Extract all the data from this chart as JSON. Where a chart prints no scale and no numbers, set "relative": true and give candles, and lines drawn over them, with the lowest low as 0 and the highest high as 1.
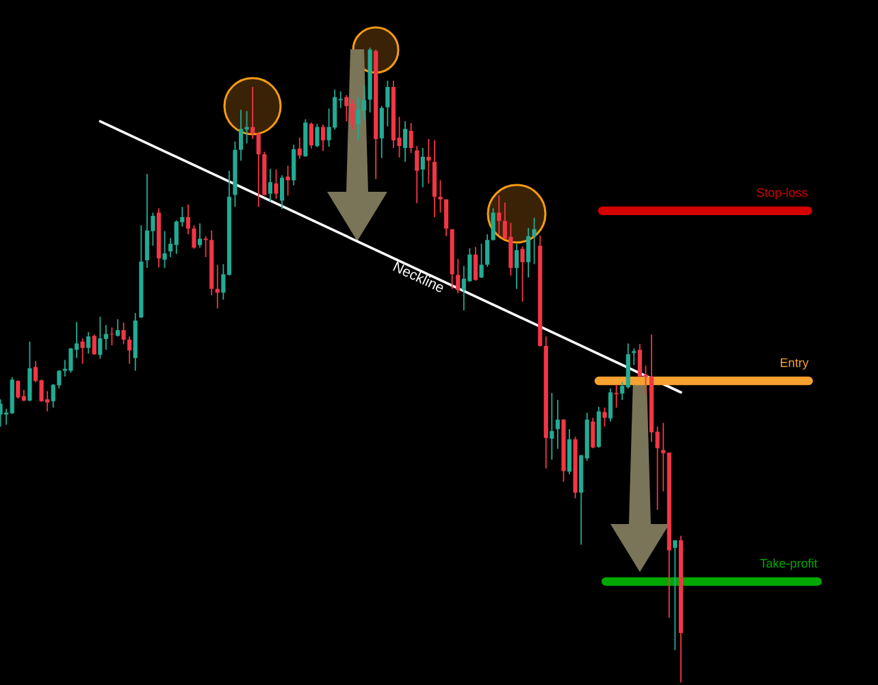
{
  "chart_data": {
    "type": "candlestick",
    "relative": true,
    "categories": [
      null,
      null,
      null,
      null,
      null,
      null,
      null,
      null,
      null,
      null,
      null,
      null,
      null,
      null,
      null,
      null,
      null,
      null,
      null,
      null,
      null,
      null,
      null,
      null,
      null,
      null,
      null,
      null,
      null,
      null,
      null,
      null,
      null,
      null,
      null,
      null,
      null,
      null,
      null,
      null,
      null,
      null,
      null,
      null,
      null,
      null,
      null,
      null,
      null,
      null,
      null,
      null,
      null,
      null,
      null,
      null,
      null,
      null,
      null,
      null,
      null,
      null,
      null,
      null,
      null,
      null,
      null,
      null,
      null,
      null,
      null,
      null,
      null,
      null,
      null,
      null,
      null,
      null,
      null,
      null,
      null,
      null,
      null,
      null,
      null,
      null,
      null,
      null,
      null,
      null,
      null,
      null,
      null,
      null,
      null,
      null,
      null,
      null,
      null,
      null,
      null,
      null,
      null,
      null,
      null,
      null,
      null,
      null,
      null,
      null,
      null,
      null,
      null,
      null,
      null,
      null,
      null
    ],
    "ohlc": [
      [
        0.422,
        0.446,
        0.403,
        0.439
      ],
      [
        0.422,
        0.431,
        0.406,
        0.425
      ],
      [
        0.424,
        0.481,
        0.423,
        0.477
      ],
      [
        0.475,
        0.476,
        0.447,
        0.449
      ],
      [
        0.451,
        0.461,
        0.443,
        0.444
      ],
      [
        0.444,
        0.537,
        0.443,
        0.495
      ],
      [
        0.497,
        0.506,
        0.473,
        0.475
      ],
      [
        0.476,
        0.477,
        0.442,
        0.443
      ],
      [
        0.446,
        0.459,
        0.427,
        0.441
      ],
      [
        0.443,
        0.47,
        0.433,
        0.469
      ],
      [
        0.468,
        0.492,
        0.463,
        0.491
      ],
      [
        0.491,
        0.508,
        0.482,
        0.494
      ],
      [
        0.491,
        0.527,
        0.488,
        0.526
      ],
      [
        0.524,
        0.568,
        0.511,
        0.534
      ],
      [
        0.537,
        0.542,
        0.502,
        0.527
      ],
      [
        0.527,
        0.552,
        0.518,
        0.545
      ],
      [
        0.546,
        0.548,
        0.516,
        0.517
      ],
      [
        0.516,
        0.576,
        0.51,
        0.542
      ],
      [
        0.541,
        0.563,
        0.524,
        0.549
      ],
      [
        0.549,
        0.559,
        0.531,
        0.548
      ],
      [
        0.546,
        0.572,
        0.545,
        0.555
      ],
      [
        0.555,
        0.567,
        0.533,
        0.54
      ],
      [
        0.54,
        0.545,
        0.502,
        0.523
      ],
      [
        0.511,
        0.582,
        0.491,
        0.57
      ],
      [
        0.575,
        0.72,
        0.574,
        0.663
      ],
      [
        0.665,
        0.801,
        0.653,
        0.712
      ],
      [
        0.711,
        0.74,
        0.688,
        0.735
      ],
      [
        0.74,
        0.747,
        0.654,
        0.668
      ],
      [
        0.666,
        0.711,
        0.653,
        0.676
      ],
      [
        0.679,
        0.7,
        0.67,
        0.691
      ],
      [
        0.689,
        0.728,
        0.675,
        0.726
      ],
      [
        0.725,
        0.749,
        0.718,
        0.733
      ],
      [
        0.733,
        0.753,
        0.706,
        0.715
      ],
      [
        0.715,
        0.72,
        0.683,
        0.685
      ],
      [
        0.689,
        0.723,
        0.685,
        0.699
      ],
      [
        0.699,
        0.703,
        0.67,
        0.697
      ],
      [
        0.697,
        0.712,
        0.61,
        0.62
      ],
      [
        0.62,
        0.658,
        0.589,
        0.614
      ],
      [
        0.614,
        0.659,
        0.603,
        0.643
      ],
      [
        0.642,
        0.806,
        0.641,
        0.765
      ],
      [
        0.768,
        0.852,
        0.749,
        0.839
      ],
      [
        0.839,
        0.902,
        0.822,
        0.872
      ],
      [
        0.871,
        0.9,
        0.849,
        0.875
      ],
      [
        0.875,
        0.938,
        0.856,
        0.865
      ],
      [
        0.865,
        0.865,
        0.749,
        0.832
      ],
      [
        0.832,
        0.836,
        0.767,
        0.768
      ],
      [
        0.77,
        0.809,
        0.758,
        0.788
      ],
      [
        0.786,
        0.808,
        0.762,
        0.77
      ],
      [
        0.759,
        0.799,
        0.746,
        0.795
      ],
      [
        0.797,
        0.814,
        0.767,
        0.791
      ],
      [
        0.791,
        0.847,
        0.783,
        0.84
      ],
      [
        0.841,
        0.858,
        0.825,
        0.83
      ],
      [
        0.829,
        0.887,
        0.828,
        0.882
      ],
      [
        0.88,
        0.882,
        0.841,
        0.846
      ],
      [
        0.845,
        0.88,
        0.843,
        0.875
      ],
      [
        0.875,
        0.879,
        0.837,
        0.854
      ],
      [
        0.854,
        0.904,
        0.844,
        0.875
      ],
      [
        0.874,
        0.934,
        0.871,
        0.922
      ],
      [
        0.917,
        0.931,
        0.905,
        0.919
      ],
      [
        0.922,
        0.925,
        0.884,
        0.908
      ],
      [
        0.911,
        0.918,
        0.871,
        0.879
      ],
      [
        0.879,
        0.922,
        0.855,
        0.902
      ],
      [
        0.901,
        0.941,
        0.887,
        0.917
      ],
      [
        0.918,
        1.0,
        0.898,
        0.997
      ],
      [
        0.995,
        0.997,
        0.793,
        0.856
      ],
      [
        0.857,
        0.908,
        0.826,
        0.905
      ],
      [
        0.906,
        0.948,
        0.876,
        0.938
      ],
      [
        0.938,
        0.948,
        0.842,
        0.854
      ],
      [
        0.858,
        0.891,
        0.827,
        0.845
      ],
      [
        0.842,
        0.884,
        0.82,
        0.872
      ],
      [
        0.869,
        0.881,
        0.834,
        0.842
      ],
      [
        0.838,
        0.845,
        0.755,
        0.806
      ],
      [
        0.808,
        0.842,
        0.78,
        0.828
      ],
      [
        0.828,
        0.856,
        0.786,
        0.822
      ],
      [
        0.82,
        0.854,
        0.733,
        0.765
      ],
      [
        0.765,
        0.791,
        0.74,
        0.761
      ],
      [
        0.761,
        0.761,
        0.703,
        0.715
      ],
      [
        0.714,
        0.714,
        0.62,
        0.643
      ],
      [
        0.642,
        0.667,
        0.613,
        0.618
      ],
      [
        0.618,
        0.656,
        0.586,
        0.636
      ],
      [
        0.632,
        0.684,
        0.631,
        0.674
      ],
      [
        0.674,
        0.686,
        0.633,
        0.634
      ],
      [
        0.638,
        0.691,
        0.637,
        0.658
      ],
      [
        0.658,
        0.706,
        0.655,
        0.697
      ],
      [
        0.697,
        0.747,
        0.696,
        0.74
      ],
      [
        0.74,
        0.767,
        0.706,
        0.727
      ],
      [
        0.727,
        0.756,
        0.698,
        0.699
      ],
      [
        0.702,
        0.724,
        0.641,
        0.653
      ],
      [
        0.653,
        0.691,
        0.62,
        0.681
      ],
      [
        0.683,
        0.687,
        0.6,
        0.662
      ],
      [
        0.662,
        0.716,
        0.638,
        0.703
      ],
      [
        0.703,
        0.732,
        0.659,
        0.714
      ],
      [
        0.688,
        0.704,
        0.529,
        0.53
      ],
      [
        0.53,
        0.545,
        0.337,
        0.385
      ],
      [
        0.384,
        0.456,
        0.351,
        0.396
      ],
      [
        0.399,
        0.445,
        0.368,
        0.414
      ],
      [
        0.414,
        0.415,
        0.316,
        0.333
      ],
      [
        0.332,
        0.399,
        0.328,
        0.383
      ],
      [
        0.383,
        0.387,
        0.29,
        0.299
      ],
      [
        0.299,
        0.358,
        0.217,
        0.358
      ],
      [
        0.353,
        0.425,
        0.349,
        0.414
      ],
      [
        0.411,
        0.417,
        0.369,
        0.37
      ],
      [
        0.371,
        0.434,
        0.37,
        0.427
      ],
      [
        0.426,
        0.433,
        0.403,
        0.417
      ],
      [
        0.416,
        0.463,
        0.411,
        0.457
      ],
      [
        0.456,
        0.469,
        0.433,
        0.454
      ],
      [
        0.455,
        0.473,
        0.445,
        0.467
      ],
      [
        0.465,
        0.534,
        0.463,
        0.517
      ],
      [
        0.519,
        0.526,
        0.5,
        0.522
      ],
      [
        0.524,
        0.533,
        0.481,
        0.482
      ],
      [
        0.485,
        0.499,
        0.454,
        0.481
      ],
      [
        0.482,
        0.548,
        0.379,
        0.394
      ],
      [
        0.395,
        0.403,
        0.272,
        0.369
      ],
      [
        0.366,
        0.409,
        0.301,
        0.361
      ],
      [
        0.362,
        0.362,
        0.102,
        0.208
      ],
      [
        0.212,
        0.224,
        0.051,
        0.224
      ],
      [
        0.224,
        0.231,
        0.0,
        0.078
      ]
    ],
    "series": [
      {
        "name": "Neckline",
        "type": "line",
        "color": "#ffffff",
        "values": [
          null,
          null,
          null,
          null,
          null,
          null,
          null,
          null,
          null,
          null,
          null,
          null,
          null,
          null,
          null,
          null,
          null,
          0.884,
          null,
          null,
          null,
          null,
          null,
          null,
          null,
          null,
          null,
          null,
          null,
          null,
          null,
          null,
          null,
          null,
          null,
          null,
          null,
          null,
          null,
          null,
          null,
          null,
          null,
          null,
          null,
          null,
          null,
          null,
          null,
          null,
          null,
          null,
          null,
          null,
          null,
          null,
          null,
          null,
          null,
          null,
          null,
          null,
          null,
          null,
          null,
          null,
          null,
          null,
          null,
          null,
          null,
          null,
          null,
          null,
          null,
          null,
          null,
          null,
          null,
          null,
          null,
          null,
          null,
          null,
          null,
          null,
          null,
          null,
          null,
          null,
          null,
          null,
          null,
          null,
          null,
          null,
          null,
          null,
          null,
          null,
          null,
          null,
          null,
          null,
          null,
          null,
          null,
          null,
          null,
          null,
          null,
          null,
          null,
          null,
          null,
          null,
          0.457
        ]
      }
    ],
    "ref_lines": [
      {
        "axis": "y",
        "value": 0.743,
        "label": "Stop-loss",
        "color": "#d40000"
      },
      {
        "axis": "y",
        "value": 0.475,
        "label": "Entry",
        "color": "#f7a130"
      },
      {
        "axis": "y",
        "value": 0.159,
        "label": "Take-profit",
        "color": "#00a800"
      }
    ]
  }
}
